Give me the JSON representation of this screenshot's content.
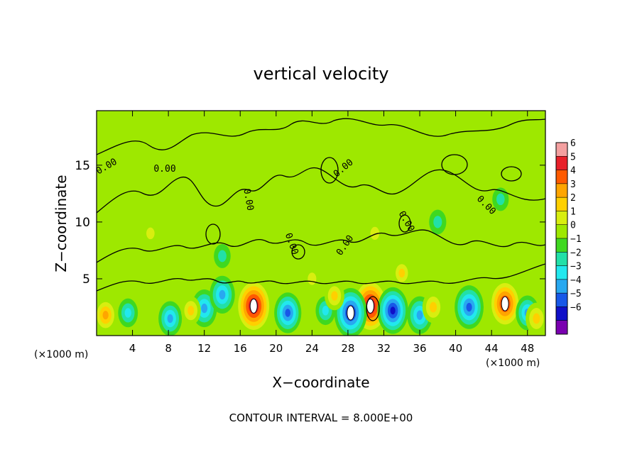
{
  "chart_data": {
    "type": "heatmap",
    "title": "vertical velocity",
    "xlabel": "X−coordinate",
    "ylabel": "Z−coordinate",
    "x_unit_left": "(×1000 m)",
    "x_unit_right": "(×1000 m)",
    "footer": "CONTOUR INTERVAL = 8.000E+00",
    "xlim": [
      0,
      50
    ],
    "ylim": [
      0,
      19.8
    ],
    "xticks": [
      4,
      8,
      12,
      16,
      20,
      24,
      28,
      32,
      36,
      40,
      44,
      48
    ],
    "yticks": [
      5,
      10,
      15
    ],
    "colorbar": {
      "ticks": [
        6,
        5,
        4,
        3,
        2,
        1,
        0,
        -1,
        -2,
        -3,
        -4,
        -5,
        -6
      ],
      "colors": [
        "#f4a0a0",
        "#e8202a",
        "#ff5a00",
        "#ffa500",
        "#ffd000",
        "#d8ee10",
        "#9ee800",
        "#3fd820",
        "#22e0a8",
        "#22e8ee",
        "#28a8f0",
        "#1858e8",
        "#1010c8",
        "#7a00b0"
      ]
    },
    "contour_labels": [
      "0.00",
      "0.00",
      "0.00",
      "0.00",
      "0.00",
      "0.00",
      "0.00",
      "0.00"
    ],
    "anomalies": [
      {
        "x": 17.5,
        "z": 2.6,
        "w": 6
      },
      {
        "x": 30.5,
        "z": 2.6,
        "w": 6
      },
      {
        "x": 45.5,
        "z": 2.8,
        "w": 5
      },
      {
        "x": 33.0,
        "z": 2.2,
        "w": -4.5
      },
      {
        "x": 28.3,
        "z": 2.0,
        "w": -5
      },
      {
        "x": 41.5,
        "z": 2.5,
        "w": -4
      },
      {
        "x": 21.3,
        "z": 2.0,
        "w": -3.5
      },
      {
        "x": 12.0,
        "z": 2.4,
        "w": -3
      },
      {
        "x": 36.0,
        "z": 1.8,
        "w": -3
      },
      {
        "x": 8.2,
        "z": 1.5,
        "w": -2.5
      },
      {
        "x": 3.5,
        "z": 2.0,
        "w": -1.5
      },
      {
        "x": 14.0,
        "z": 3.6,
        "w": -3
      },
      {
        "x": 48.0,
        "z": 2.0,
        "w": -2.5
      },
      {
        "x": 25.5,
        "z": 2.2,
        "w": -1.5
      },
      {
        "x": 1.0,
        "z": 1.8,
        "w": 2.5
      },
      {
        "x": 10.5,
        "z": 2.2,
        "w": 1.5
      },
      {
        "x": 26.5,
        "z": 3.5,
        "w": 1.5
      },
      {
        "x": 37.5,
        "z": 2.5,
        "w": 2
      },
      {
        "x": 49.0,
        "z": 1.5,
        "w": 2
      },
      {
        "x": 31.0,
        "z": 9.0,
        "w": 1
      },
      {
        "x": 34.0,
        "z": 5.5,
        "w": 1.2
      },
      {
        "x": 24.0,
        "z": 5.0,
        "w": 0.8
      },
      {
        "x": 38.0,
        "z": 10.0,
        "w": -0.8
      },
      {
        "x": 14.0,
        "z": 7.0,
        "w": -0.7
      },
      {
        "x": 6.0,
        "z": 9.0,
        "w": 0.6
      },
      {
        "x": 45.0,
        "z": 12.0,
        "w": -0.6
      }
    ]
  }
}
